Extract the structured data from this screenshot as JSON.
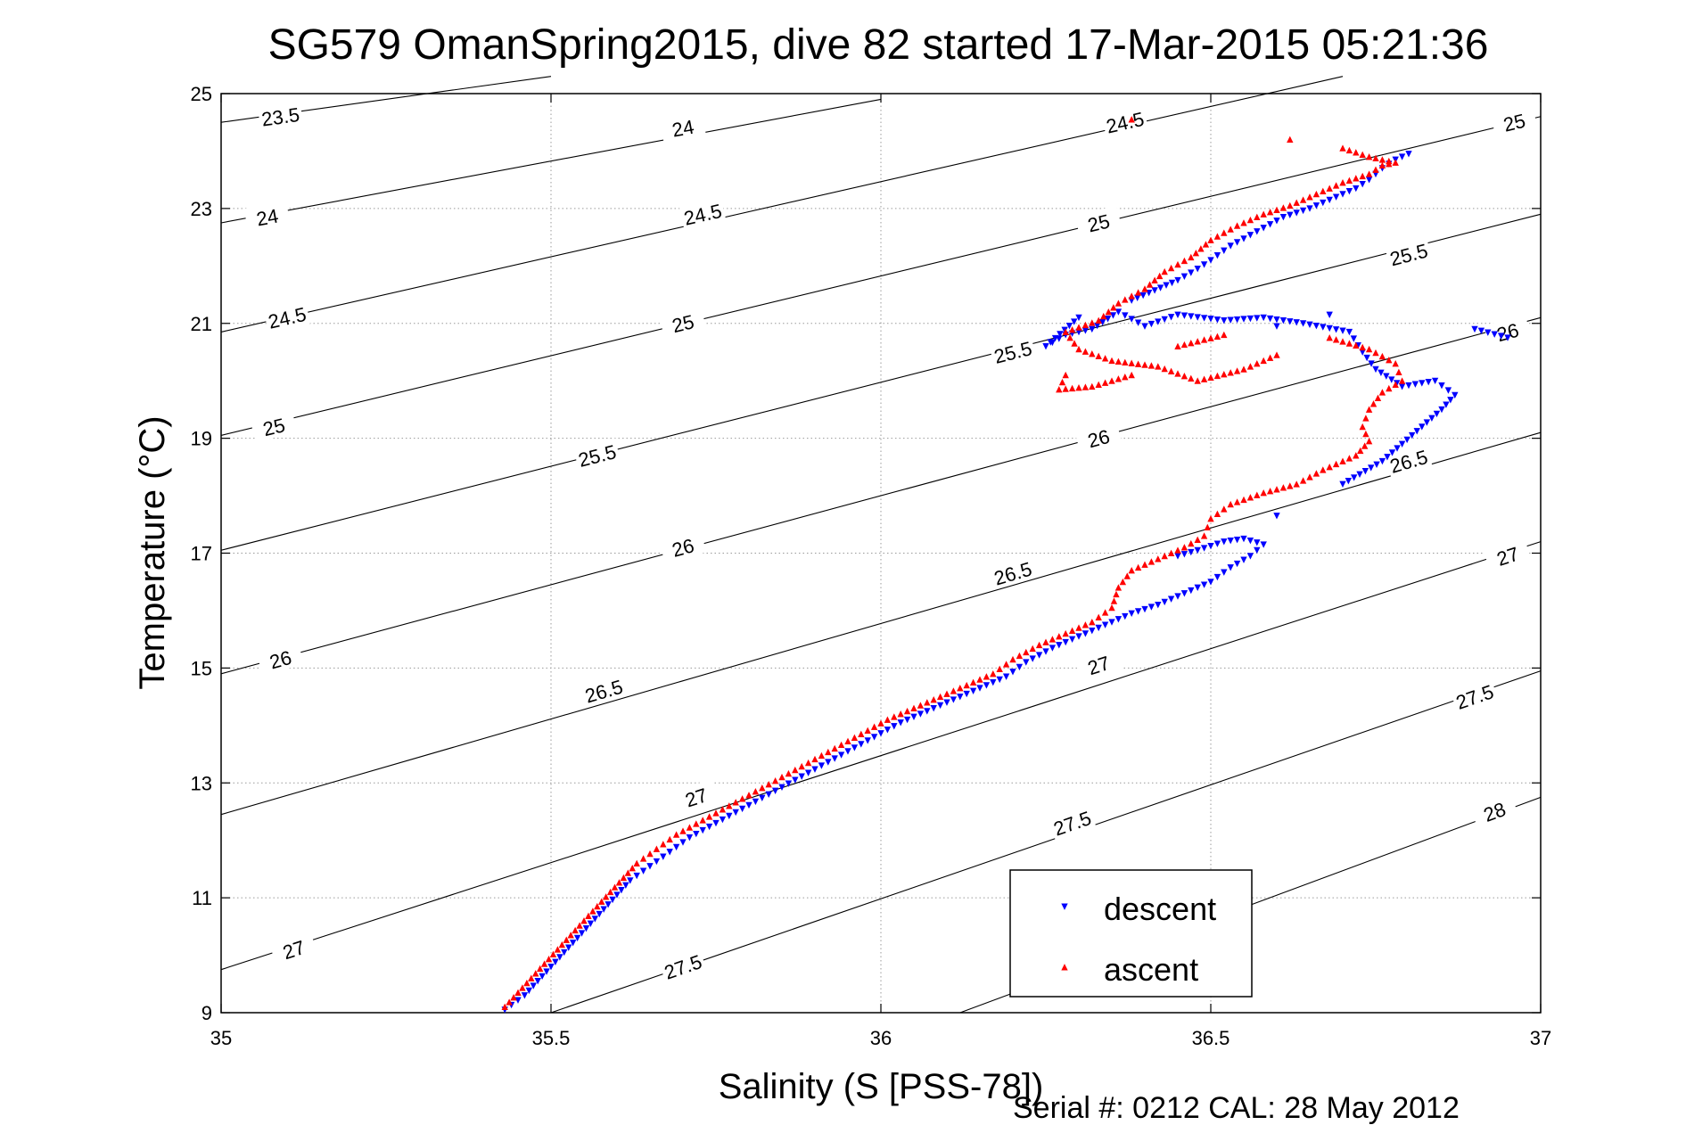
{
  "chart_data": {
    "type": "scatter",
    "title": "SG579 OmanSpring2015, dive 82 started 17-Mar-2015 05:21:36",
    "xlabel": "Salinity (S [PSS-78])",
    "ylabel": "Temperature (°C)",
    "footer": "Serial #: 0212  CAL: 28 May 2012",
    "xlim": [
      35,
      37
    ],
    "ylim": [
      9,
      25
    ],
    "x_ticks": [
      "35",
      "35.5",
      "36",
      "36.5",
      "37"
    ],
    "y_ticks": [
      "9",
      "11",
      "13",
      "15",
      "17",
      "19",
      "21",
      "23",
      "25"
    ],
    "grid": true,
    "legend_position": "bottom-right",
    "colors": {
      "descent": "#0000ff",
      "ascent": "#ff0000",
      "contour": "#000000"
    },
    "density_contours": [
      {
        "label": "23.5",
        "p0": [
          35,
          24.5
        ],
        "p1": [
          35.5,
          25.3
        ],
        "label_at": [
          35.09,
          24.6
        ]
      },
      {
        "label": "24",
        "p0": [
          35,
          22.75
        ],
        "p1": [
          36,
          24.9
        ],
        "label_at": [
          35.07,
          22.85
        ]
      },
      {
        "label": "24",
        "p0": [
          35,
          22.75
        ],
        "p1": [
          36,
          24.9
        ],
        "label_at": [
          35.7,
          24.4
        ]
      },
      {
        "label": "24.5",
        "p0": [
          35,
          20.85
        ],
        "p1": [
          36.7,
          25.3
        ],
        "label_at": [
          35.1,
          21.1
        ]
      },
      {
        "label": "24.5",
        "p0": [
          35,
          20.85
        ],
        "p1": [
          36.7,
          25.3
        ],
        "label_at": [
          35.73,
          22.9
        ]
      },
      {
        "label": "24.5",
        "p0": [
          35,
          20.85
        ],
        "p1": [
          36.7,
          25.3
        ],
        "label_at": [
          36.37,
          24.5
        ]
      },
      {
        "label": "25",
        "p0": [
          35,
          19.05
        ],
        "p1": [
          37,
          24.6
        ],
        "label_at": [
          35.08,
          19.2
        ]
      },
      {
        "label": "25",
        "p0": [
          35,
          19.05
        ],
        "p1": [
          37,
          24.6
        ],
        "label_at": [
          35.7,
          21.0
        ]
      },
      {
        "label": "25",
        "p0": [
          35,
          19.05
        ],
        "p1": [
          37,
          24.6
        ],
        "label_at": [
          36.33,
          22.75
        ]
      },
      {
        "label": "25",
        "p0": [
          35,
          19.05
        ],
        "p1": [
          37,
          24.6
        ],
        "label_at": [
          36.96,
          24.5
        ]
      },
      {
        "label": "25.5",
        "p0": [
          35,
          17.05
        ],
        "p1": [
          37,
          22.9
        ],
        "label_at": [
          35.57,
          18.7
        ]
      },
      {
        "label": "25.5",
        "p0": [
          35,
          17.05
        ],
        "p1": [
          37,
          22.9
        ],
        "label_at": [
          36.2,
          20.5
        ]
      },
      {
        "label": "25.5",
        "p0": [
          35,
          17.05
        ],
        "p1": [
          37,
          22.9
        ],
        "label_at": [
          36.8,
          22.2
        ]
      },
      {
        "label": "26",
        "p0": [
          35,
          14.9
        ],
        "p1": [
          37,
          21.1
        ],
        "label_at": [
          35.09,
          15.15
        ]
      },
      {
        "label": "26",
        "p0": [
          35,
          14.9
        ],
        "p1": [
          37,
          21.1
        ],
        "label_at": [
          35.7,
          17.1
        ]
      },
      {
        "label": "26",
        "p0": [
          35,
          14.9
        ],
        "p1": [
          37,
          21.1
        ],
        "label_at": [
          36.33,
          19.0
        ]
      },
      {
        "label": "26",
        "p0": [
          35,
          14.9
        ],
        "p1": [
          37,
          21.1
        ],
        "label_at": [
          36.95,
          20.85
        ]
      },
      {
        "label": "26.5",
        "p0": [
          35,
          12.45
        ],
        "p1": [
          37,
          19.1
        ],
        "label_at": [
          35.58,
          14.6
        ]
      },
      {
        "label": "26.5",
        "p0": [
          35,
          12.45
        ],
        "p1": [
          37,
          19.1
        ],
        "label_at": [
          36.2,
          16.65
        ]
      },
      {
        "label": "26.5",
        "p0": [
          35,
          12.45
        ],
        "p1": [
          37,
          19.1
        ],
        "label_at": [
          36.8,
          18.6
        ]
      },
      {
        "label": "27",
        "p0": [
          35,
          9.75
        ],
        "p1": [
          37,
          17.2
        ],
        "label_at": [
          35.11,
          10.1
        ]
      },
      {
        "label": "27",
        "p0": [
          35,
          9.75
        ],
        "p1": [
          37,
          17.2
        ],
        "label_at": [
          35.72,
          12.75
        ]
      },
      {
        "label": "27",
        "p0": [
          35,
          9.75
        ],
        "p1": [
          37,
          17.2
        ],
        "label_at": [
          36.33,
          15.05
        ]
      },
      {
        "label": "27",
        "p0": [
          35,
          9.75
        ],
        "p1": [
          37,
          17.2
        ],
        "label_at": [
          36.95,
          16.95
        ]
      },
      {
        "label": "27.5",
        "p0": [
          35.5,
          9.0
        ],
        "p1": [
          37,
          14.95
        ],
        "label_at": [
          35.7,
          9.8
        ]
      },
      {
        "label": "27.5",
        "p0": [
          35.5,
          9.0
        ],
        "p1": [
          37,
          14.95
        ],
        "label_at": [
          36.29,
          12.3
        ]
      },
      {
        "label": "27.5",
        "p0": [
          35.5,
          9.0
        ],
        "p1": [
          37,
          14.95
        ],
        "label_at": [
          36.9,
          14.5
        ]
      },
      {
        "label": "28",
        "p0": [
          36.12,
          9.0
        ],
        "p1": [
          37,
          12.75
        ],
        "label_at": [
          36.93,
          12.5
        ]
      }
    ],
    "series": [
      {
        "name": "descent",
        "marker": "down-triangle",
        "points": [
          [
            35.43,
            9.05
          ],
          [
            35.46,
            9.3
          ],
          [
            35.48,
            9.55
          ],
          [
            35.5,
            9.8
          ],
          [
            35.52,
            10.05
          ],
          [
            35.54,
            10.3
          ],
          [
            35.56,
            10.55
          ],
          [
            35.58,
            10.8
          ],
          [
            35.6,
            11.05
          ],
          [
            35.62,
            11.3
          ],
          [
            35.65,
            11.55
          ],
          [
            35.68,
            11.8
          ],
          [
            35.71,
            12.05
          ],
          [
            35.75,
            12.3
          ],
          [
            35.79,
            12.55
          ],
          [
            35.83,
            12.8
          ],
          [
            35.87,
            13.05
          ],
          [
            35.91,
            13.3
          ],
          [
            35.95,
            13.55
          ],
          [
            35.99,
            13.8
          ],
          [
            36.03,
            14.05
          ],
          [
            36.07,
            14.25
          ],
          [
            36.11,
            14.45
          ],
          [
            36.15,
            14.65
          ],
          [
            36.19,
            14.85
          ],
          [
            36.22,
            15.1
          ],
          [
            36.26,
            15.35
          ],
          [
            36.3,
            15.55
          ],
          [
            36.34,
            15.75
          ],
          [
            36.38,
            15.95
          ],
          [
            36.42,
            16.1
          ],
          [
            36.46,
            16.3
          ],
          [
            36.5,
            16.5
          ],
          [
            36.53,
            16.75
          ],
          [
            36.56,
            16.95
          ],
          [
            36.58,
            17.15
          ],
          [
            36.55,
            17.25
          ],
          [
            36.52,
            17.2
          ],
          [
            36.48,
            17.05
          ],
          [
            36.45,
            16.95
          ],
          [
            36.6,
            17.65
          ],
          [
            36.7,
            18.2
          ],
          [
            36.76,
            18.6
          ],
          [
            36.79,
            18.9
          ],
          [
            36.82,
            19.2
          ],
          [
            36.85,
            19.5
          ],
          [
            36.87,
            19.75
          ],
          [
            36.84,
            20.0
          ],
          [
            36.79,
            19.9
          ],
          [
            36.75,
            20.2
          ],
          [
            36.73,
            20.5
          ],
          [
            36.71,
            20.85
          ],
          [
            36.64,
            21.0
          ],
          [
            36.58,
            21.1
          ],
          [
            36.52,
            21.05
          ],
          [
            36.45,
            21.15
          ],
          [
            36.4,
            20.95
          ],
          [
            36.36,
            21.2
          ],
          [
            36.32,
            20.9
          ],
          [
            36.28,
            20.8
          ],
          [
            36.25,
            20.6
          ],
          [
            36.3,
            21.1
          ],
          [
            36.38,
            21.4
          ],
          [
            36.45,
            21.75
          ],
          [
            36.48,
            21.95
          ],
          [
            36.5,
            22.1
          ],
          [
            36.53,
            22.35
          ],
          [
            36.57,
            22.6
          ],
          [
            36.61,
            22.85
          ],
          [
            36.65,
            23.0
          ],
          [
            36.69,
            23.2
          ],
          [
            36.72,
            23.35
          ],
          [
            36.74,
            23.5
          ],
          [
            36.76,
            23.7
          ],
          [
            36.78,
            23.85
          ],
          [
            36.8,
            23.95
          ],
          [
            36.9,
            20.9
          ],
          [
            36.95,
            20.75
          ],
          [
            36.6,
            20.95
          ],
          [
            36.68,
            21.15
          ]
        ]
      },
      {
        "name": "ascent",
        "marker": "up-triangle",
        "points": [
          [
            35.43,
            9.1
          ],
          [
            35.45,
            9.35
          ],
          [
            35.47,
            9.6
          ],
          [
            35.49,
            9.85
          ],
          [
            35.51,
            10.1
          ],
          [
            35.53,
            10.35
          ],
          [
            35.55,
            10.6
          ],
          [
            35.57,
            10.85
          ],
          [
            35.59,
            11.1
          ],
          [
            35.61,
            11.35
          ],
          [
            35.63,
            11.6
          ],
          [
            35.66,
            11.85
          ],
          [
            35.69,
            12.1
          ],
          [
            35.73,
            12.35
          ],
          [
            35.77,
            12.6
          ],
          [
            35.81,
            12.85
          ],
          [
            35.85,
            13.1
          ],
          [
            35.89,
            13.35
          ],
          [
            35.93,
            13.6
          ],
          [
            35.97,
            13.85
          ],
          [
            36.01,
            14.1
          ],
          [
            36.05,
            14.3
          ],
          [
            36.09,
            14.5
          ],
          [
            36.13,
            14.7
          ],
          [
            36.17,
            14.9
          ],
          [
            36.2,
            15.15
          ],
          [
            36.24,
            15.4
          ],
          [
            36.28,
            15.6
          ],
          [
            36.32,
            15.8
          ],
          [
            36.35,
            16.05
          ],
          [
            36.36,
            16.4
          ],
          [
            36.38,
            16.7
          ],
          [
            36.42,
            16.9
          ],
          [
            36.46,
            17.1
          ],
          [
            36.49,
            17.3
          ],
          [
            36.5,
            17.6
          ],
          [
            36.53,
            17.85
          ],
          [
            36.58,
            18.05
          ],
          [
            36.63,
            18.2
          ],
          [
            36.67,
            18.45
          ],
          [
            36.72,
            18.7
          ],
          [
            36.74,
            18.95
          ],
          [
            36.73,
            19.2
          ],
          [
            36.74,
            19.5
          ],
          [
            36.76,
            19.8
          ],
          [
            36.79,
            20.0
          ],
          [
            36.78,
            20.3
          ],
          [
            36.74,
            20.55
          ],
          [
            36.68,
            20.75
          ],
          [
            36.6,
            20.45
          ],
          [
            36.55,
            20.2
          ],
          [
            36.48,
            20.0
          ],
          [
            36.42,
            20.25
          ],
          [
            36.35,
            20.35
          ],
          [
            36.3,
            20.55
          ],
          [
            36.28,
            20.85
          ],
          [
            36.33,
            21.05
          ],
          [
            36.36,
            21.35
          ],
          [
            36.4,
            21.6
          ],
          [
            36.43,
            21.9
          ],
          [
            36.47,
            22.15
          ],
          [
            36.5,
            22.45
          ],
          [
            36.54,
            22.7
          ],
          [
            36.58,
            22.9
          ],
          [
            36.62,
            23.05
          ],
          [
            36.66,
            23.25
          ],
          [
            36.7,
            23.45
          ],
          [
            36.74,
            23.6
          ],
          [
            36.76,
            23.75
          ],
          [
            36.78,
            23.8
          ],
          [
            36.74,
            23.9
          ],
          [
            36.7,
            24.05
          ],
          [
            36.38,
            24.55
          ],
          [
            36.62,
            24.2
          ],
          [
            36.28,
            20.1
          ],
          [
            36.27,
            19.85
          ],
          [
            36.32,
            19.9
          ],
          [
            36.38,
            20.1
          ],
          [
            36.45,
            20.6
          ],
          [
            36.52,
            20.8
          ]
        ]
      }
    ]
  }
}
